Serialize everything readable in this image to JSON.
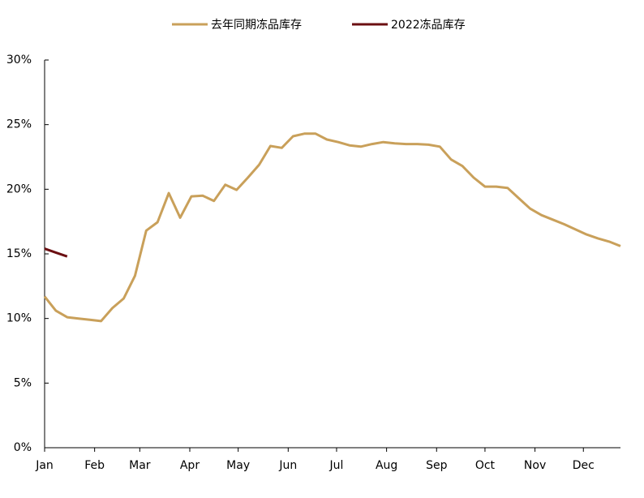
{
  "chart_data": {
    "type": "line",
    "x": [
      0,
      7,
      14,
      21,
      28,
      35,
      42,
      49,
      56,
      63,
      70,
      77,
      84,
      91,
      98,
      105,
      112,
      119,
      126,
      133,
      140,
      147,
      154,
      161,
      168,
      175,
      182,
      189,
      196,
      203,
      210,
      217,
      224,
      231,
      238,
      245,
      252,
      259,
      266,
      273,
      280,
      287,
      294,
      301,
      308,
      315,
      322,
      329,
      336,
      343,
      350,
      357
    ],
    "xlim": [
      0,
      357
    ],
    "xticks": [
      {
        "value": 0,
        "label": "Jan"
      },
      {
        "value": 31,
        "label": "Feb"
      },
      {
        "value": 59,
        "label": "Mar"
      },
      {
        "value": 90,
        "label": "Apr"
      },
      {
        "value": 120,
        "label": "May"
      },
      {
        "value": 151,
        "label": "Jun"
      },
      {
        "value": 181,
        "label": "Jul"
      },
      {
        "value": 212,
        "label": "Aug"
      },
      {
        "value": 243,
        "label": "Sep"
      },
      {
        "value": 273,
        "label": "Oct"
      },
      {
        "value": 304,
        "label": "Nov"
      },
      {
        "value": 334,
        "label": "Dec"
      }
    ],
    "ylim": [
      0,
      30
    ],
    "yticks": [
      {
        "value": 0,
        "label": "0%"
      },
      {
        "value": 5,
        "label": "5%"
      },
      {
        "value": 10,
        "label": "10%"
      },
      {
        "value": 15,
        "label": "15%"
      },
      {
        "value": 20,
        "label": "20%"
      },
      {
        "value": 25,
        "label": "25%"
      },
      {
        "value": 30,
        "label": "30%"
      }
    ],
    "series": [
      {
        "name": "去年同期冻品库存",
        "color": "#c9a05a",
        "values": [
          11.7,
          10.6,
          10.1,
          10.0,
          9.9,
          9.8,
          10.8,
          11.55,
          13.3,
          16.8,
          17.45,
          19.7,
          17.8,
          19.45,
          19.5,
          19.1,
          20.35,
          19.95,
          20.9,
          21.9,
          23.35,
          23.2,
          24.1,
          24.3,
          24.3,
          23.85,
          23.65,
          23.4,
          23.3,
          23.5,
          23.65,
          23.55,
          23.5,
          23.5,
          23.45,
          23.3,
          22.3,
          21.8,
          20.9,
          20.2,
          20.2,
          20.1,
          19.3,
          18.5,
          18.0,
          17.65,
          17.3,
          16.9,
          16.5,
          16.2,
          15.95,
          15.6
        ]
      },
      {
        "name": "2022冻品库存",
        "color": "#6b0f12",
        "values": [
          15.4,
          15.1,
          14.8,
          null,
          null,
          null,
          null,
          null,
          null,
          null,
          null,
          null,
          null,
          null,
          null,
          null,
          null,
          null,
          null,
          null,
          null,
          null,
          null,
          null,
          null,
          null,
          null,
          null,
          null,
          null,
          null,
          null,
          null,
          null,
          null,
          null,
          null,
          null,
          null,
          null,
          null,
          null,
          null,
          null,
          null,
          null,
          null,
          null,
          null,
          null,
          null,
          null
        ]
      }
    ],
    "legend": "top"
  }
}
